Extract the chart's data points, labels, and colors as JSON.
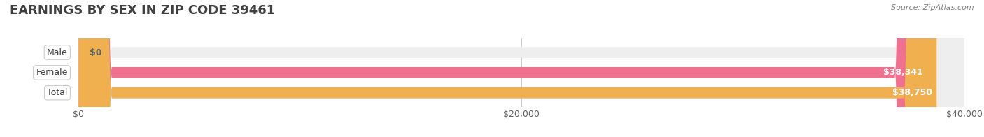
{
  "title": "EARNINGS BY SEX IN ZIP CODE 39461",
  "source": "Source: ZipAtlas.com",
  "categories": [
    "Male",
    "Female",
    "Total"
  ],
  "values": [
    0,
    38341,
    38750
  ],
  "bar_colors": [
    "#a8c8f0",
    "#f07090",
    "#f0b050"
  ],
  "track_color": "#eeeeee",
  "xlim": [
    0,
    40000
  ],
  "xticks": [
    0,
    20000,
    40000
  ],
  "xtick_labels": [
    "$0",
    "$20,000",
    "$40,000"
  ],
  "bar_labels": [
    "$0",
    "$38,341",
    "$38,750"
  ],
  "label_color": "#ffffff",
  "title_color": "#404040",
  "background_color": "#ffffff",
  "bar_height": 0.55,
  "label_fontsize": 9,
  "title_fontsize": 13
}
